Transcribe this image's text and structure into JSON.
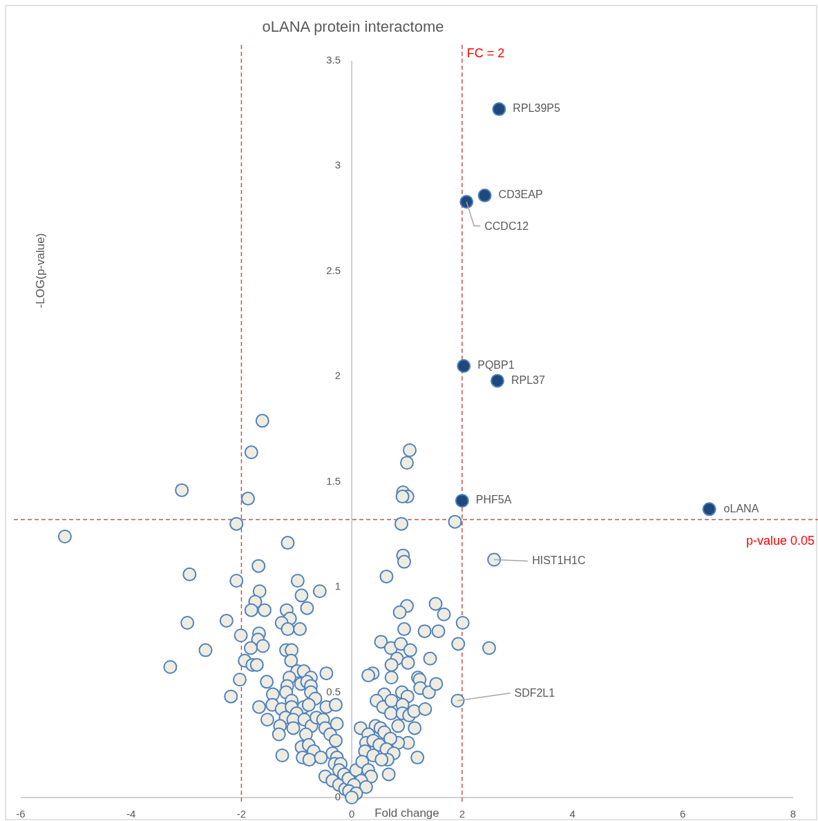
{
  "chart_data": {
    "type": "scatter",
    "title": "oLANA protein interactome",
    "xlabel": "Fold change",
    "ylabel": "-LOG(p-value)",
    "xlim": [
      -6,
      8
    ],
    "xticks": [
      -6,
      -4,
      -2,
      0,
      2,
      4,
      6,
      8
    ],
    "ylim": [
      0,
      3.5
    ],
    "yticks": [
      0,
      0.5,
      1,
      1.5,
      2,
      2.5,
      3,
      3.5
    ],
    "marker": "circle",
    "series": [
      {
        "color": "#eeece1",
        "x": [
          -5.2,
          -3.08,
          -1.62,
          -1.82,
          -1.88,
          -2.09,
          -1.16,
          -2.94,
          -1.69,
          -2.09,
          -0.98,
          -1.67,
          -0.58,
          -0.91,
          -1.75,
          -1.82,
          -1.58,
          -0.81,
          -1.18,
          -1.12,
          -1.27,
          -1.16,
          -0.94,
          -2.98,
          -2.27,
          -2.01,
          -1.68,
          -1.7,
          -1.61,
          -1.83,
          -2.65,
          -1.19,
          -1.09,
          -1.1,
          -3.29,
          -1.94,
          -1.8,
          -1.72,
          -0.99,
          -0.87,
          -0.74,
          -0.46,
          -1.13,
          -0.92,
          -0.81,
          -0.74,
          -0.74,
          -0.66,
          -2.03,
          -1.54,
          -1.17,
          -1.19,
          -2.19,
          -1.43,
          -1.44,
          -1.27,
          -1.68,
          -1.53,
          -1.09,
          -1.09,
          -0.87,
          -0.78,
          -1.0,
          -0.46,
          -0.29,
          -0.27,
          -1.2,
          -1.06,
          -1.06,
          -1.3,
          -1.32,
          -0.86,
          -0.73,
          -0.64,
          -0.52,
          -0.48,
          -0.83,
          -0.39,
          -0.29,
          -0.91,
          -0.78,
          -0.69,
          -0.89,
          -0.77,
          -0.56,
          -1.26,
          -0.48,
          -0.35,
          -0.23,
          -0.12,
          -0.35,
          -0.27,
          -0.31,
          -0.2,
          -0.23,
          -0.14,
          -0.06,
          1.05,
          1.0,
          0.93,
          1.01,
          0.92,
          0.9,
          1.87,
          0.93,
          0.95,
          0.63,
          1.0,
          0.87,
          1.52,
          1.67,
          2.01,
          0.95,
          1.32,
          1.57,
          1.93,
          2.49,
          0.53,
          0.71,
          0.89,
          1.06,
          0.82,
          0.72,
          1.02,
          1.42,
          0.38,
          0.3,
          0.72,
          1.2,
          1.23,
          1.24,
          1.4,
          1.53,
          0.91,
          1.01,
          0.59,
          0.45,
          0.57,
          0.72,
          0.92,
          0.71,
          0.92,
          1.04,
          1.13,
          1.33,
          0.84,
          1.14,
          1.02,
          0.84,
          1.19,
          0.67,
          0.16,
          0.43,
          0.52,
          0.3,
          0.59,
          0.7,
          0.26,
          0.39,
          0.5,
          0.63,
          0.76,
          0.24,
          0.39,
          0.65,
          0.54,
          0.08,
          0.19,
          0.3,
          0.35,
          0.17,
          0.26,
          0.04,
          -0.05,
          0.08,
          0.0,
          2.58,
          1.92
        ],
        "values": [
          1.24,
          1.46,
          1.79,
          1.64,
          1.42,
          1.3,
          1.21,
          1.06,
          1.1,
          1.03,
          1.03,
          0.98,
          0.98,
          0.96,
          0.93,
          0.89,
          0.89,
          0.9,
          0.89,
          0.85,
          0.83,
          0.8,
          0.8,
          0.83,
          0.84,
          0.77,
          0.78,
          0.75,
          0.72,
          0.71,
          0.7,
          0.7,
          0.7,
          0.65,
          0.62,
          0.65,
          0.63,
          0.63,
          0.6,
          0.6,
          0.57,
          0.59,
          0.57,
          0.54,
          0.55,
          0.53,
          0.5,
          0.47,
          0.56,
          0.55,
          0.53,
          0.5,
          0.48,
          0.49,
          0.44,
          0.42,
          0.43,
          0.37,
          0.46,
          0.43,
          0.43,
          0.44,
          0.4,
          0.43,
          0.44,
          0.35,
          0.38,
          0.37,
          0.33,
          0.34,
          0.3,
          0.37,
          0.34,
          0.38,
          0.37,
          0.33,
          0.3,
          0.3,
          0.27,
          0.24,
          0.25,
          0.22,
          0.19,
          0.18,
          0.19,
          0.2,
          0.1,
          0.08,
          0.06,
          0.04,
          0.21,
          0.19,
          0.16,
          0.16,
          0.13,
          0.11,
          0.09,
          1.65,
          1.59,
          1.45,
          1.43,
          1.43,
          1.3,
          1.31,
          1.15,
          1.12,
          1.05,
          0.91,
          0.88,
          0.92,
          0.87,
          0.83,
          0.8,
          0.79,
          0.79,
          0.73,
          0.71,
          0.74,
          0.71,
          0.73,
          0.7,
          0.66,
          0.63,
          0.64,
          0.66,
          0.59,
          0.58,
          0.57,
          0.57,
          0.56,
          0.52,
          0.5,
          0.54,
          0.5,
          0.48,
          0.49,
          0.46,
          0.43,
          0.46,
          0.44,
          0.4,
          0.4,
          0.39,
          0.41,
          0.42,
          0.34,
          0.33,
          0.26,
          0.26,
          0.19,
          0.11,
          0.33,
          0.34,
          0.33,
          0.3,
          0.31,
          0.28,
          0.26,
          0.27,
          0.25,
          0.23,
          0.21,
          0.22,
          0.2,
          0.18,
          0.18,
          0.13,
          0.17,
          0.13,
          0.1,
          0.08,
          0.05,
          0.06,
          0.03,
          0.02,
          0.0,
          1.13,
          0.46
        ]
      },
      {
        "color": "#1f497d",
        "x": [
          2.67,
          2.41,
          2.08,
          2.03,
          2.64,
          2.0,
          6.48
        ],
        "values": [
          3.27,
          2.86,
          2.83,
          2.05,
          1.98,
          1.41,
          1.37
        ]
      }
    ],
    "ref_lines": [
      {
        "axis": "x",
        "value": -2,
        "color": "#c0504d",
        "line_style": "dashed"
      },
      {
        "axis": "x",
        "value": 2,
        "label": "FC = 2",
        "color": "#c0504d",
        "line_style": "dashed"
      },
      {
        "axis": "y",
        "value": 1.32,
        "label": "p-value 0.05",
        "color": "#c0504d",
        "line_style": "dashed"
      }
    ],
    "annotations": [
      {
        "text": "RPL39P5",
        "x": 2.67,
        "y": 3.27
      },
      {
        "text": "CD3EAP",
        "x": 2.41,
        "y": 2.86
      },
      {
        "text": "CCDC12",
        "x": 2.08,
        "y": 2.83
      },
      {
        "text": "PQBP1",
        "x": 2.03,
        "y": 2.05
      },
      {
        "text": "RPL37",
        "x": 2.64,
        "y": 1.98
      },
      {
        "text": "PHF5A",
        "x": 2.0,
        "y": 1.41
      },
      {
        "text": "oLANA",
        "x": 6.48,
        "y": 1.37
      },
      {
        "text": "HIST1H1C",
        "x": 2.58,
        "y": 1.13
      },
      {
        "text": "SDF2L1",
        "x": 1.92,
        "y": 0.46
      }
    ]
  }
}
